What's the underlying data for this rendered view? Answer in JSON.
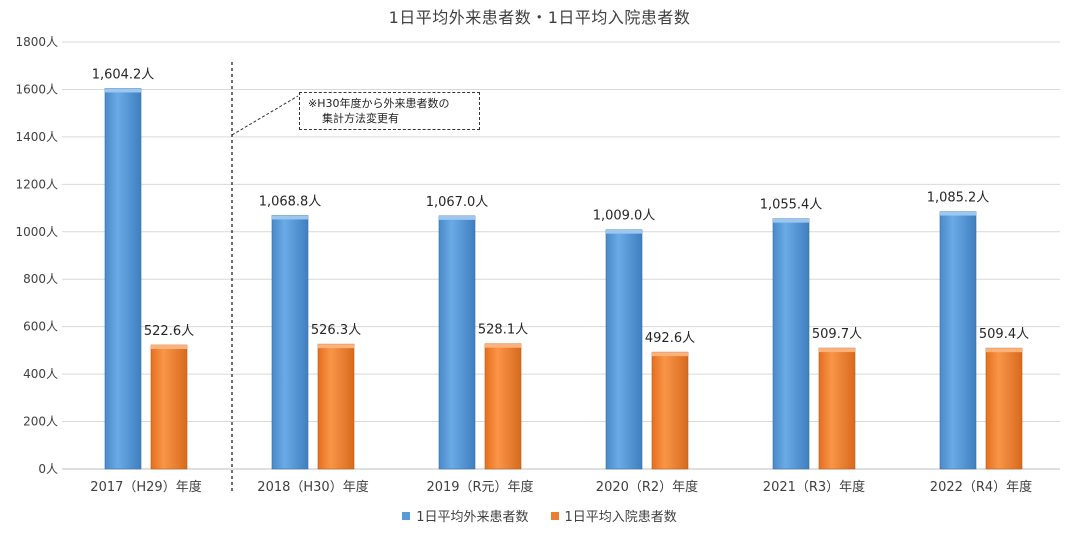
{
  "chart_data": {
    "type": "bar",
    "title": "1日平均外来患者数・1日平均入院患者数",
    "categories": [
      "2017（H29）年度",
      "2018（H30）年度",
      "2019（R元）年度",
      "2020（R2）年度",
      "2021（R3）年度",
      "2022（R4）年度"
    ],
    "series": [
      {
        "name": "1日平均外来患者数",
        "color": "#5b9bd5",
        "values": [
          1604.2,
          1068.8,
          1067.0,
          1009.0,
          1055.4,
          1085.2
        ],
        "labels": [
          "1,604.2人",
          "1,068.8人",
          "1,067.0人",
          "1,009.0人",
          "1,055.4人",
          "1,085.2人"
        ]
      },
      {
        "name": "1日平均入院患者数",
        "color": "#ed7d31",
        "values": [
          522.6,
          526.3,
          528.1,
          492.6,
          509.7,
          509.4
        ],
        "labels": [
          "522.6人",
          "526.3人",
          "528.1人",
          "492.6人",
          "509.7人",
          "509.4人"
        ]
      }
    ],
    "ylim": [
      0,
      1800
    ],
    "yticks": [
      0,
      200,
      400,
      600,
      800,
      1000,
      1200,
      1400,
      1600,
      1800
    ],
    "ytick_labels": [
      "0人",
      "200人",
      "400人",
      "600人",
      "800人",
      "1000人",
      "1200人",
      "1400人",
      "1600人",
      "1800人"
    ],
    "grid": true,
    "legend_position": "bottom",
    "annotation": {
      "line1": "※H30年度から外来患者数の",
      "line2": "集計方法変更有"
    }
  }
}
